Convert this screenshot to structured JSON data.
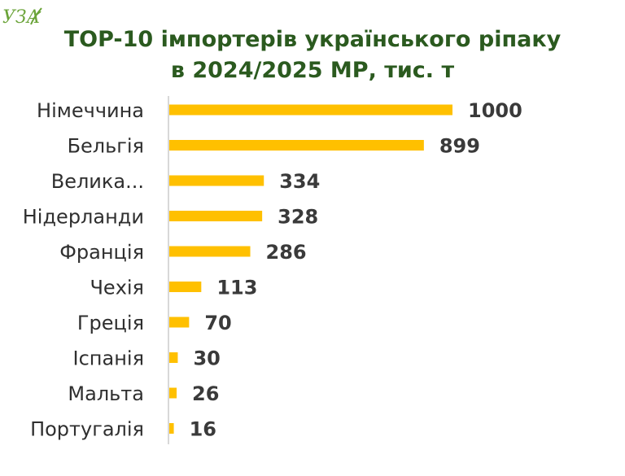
{
  "logo": {
    "text": "УЗА",
    "color": "#6aa338"
  },
  "title_line1": "TOP-10 імпортерів українського ріпаку",
  "title_line2": "в 2024/2025 МР, тис. т",
  "colors": {
    "bar": "#ffc000",
    "title": "#2b5a1f",
    "axis": "#bfbfbf"
  },
  "chart_data": {
    "type": "bar",
    "orientation": "horizontal",
    "title": "TOP-10 імпортерів українського ріпаку в 2024/2025 МР, тис. т",
    "categories": [
      "Німеччина",
      "Бельгія",
      "Велика...",
      "Нідерланди",
      "Франція",
      "Чехія",
      "Греція",
      "Іспанія",
      "Мальта",
      "Португалія"
    ],
    "values": [
      1000,
      899,
      334,
      328,
      286,
      113,
      70,
      30,
      26,
      16
    ],
    "xlim": [
      0,
      1000
    ],
    "grid": false,
    "legend": "none",
    "data_labels": true
  }
}
